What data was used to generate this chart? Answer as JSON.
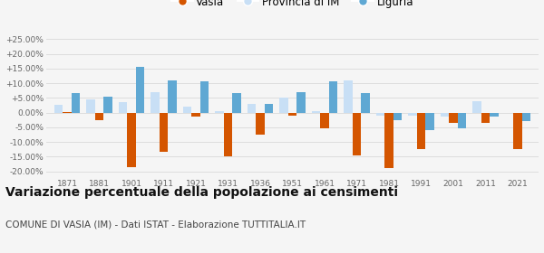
{
  "years": [
    1871,
    1881,
    1901,
    1911,
    1921,
    1931,
    1936,
    1951,
    1961,
    1971,
    1981,
    1991,
    2001,
    2011,
    2021
  ],
  "vasia": [
    0.3,
    -2.5,
    -18.5,
    -13.5,
    -1.5,
    -15.0,
    -7.5,
    -1.0,
    -5.5,
    -14.5,
    -19.0,
    -12.5,
    -3.5,
    -3.5,
    -12.5
  ],
  "provincia_im": [
    2.5,
    4.5,
    3.5,
    7.0,
    2.0,
    0.5,
    3.0,
    5.0,
    0.5,
    11.0,
    -1.0,
    -1.0,
    -1.5,
    4.0,
    0.0
  ],
  "liguria": [
    6.5,
    5.5,
    15.5,
    11.0,
    10.5,
    6.5,
    3.0,
    7.0,
    10.5,
    6.5,
    -2.5,
    -6.0,
    -5.5,
    -1.5,
    -3.0
  ],
  "vasia_color": "#d45500",
  "provincia_color": "#c8dff5",
  "liguria_color": "#5fa8d3",
  "title": "Variazione percentuale della popolazione ai censimenti",
  "subtitle": "COMUNE DI VASIA (IM) - Dati ISTAT - Elaborazione TUTTITALIA.IT",
  "ylim": [
    -22,
    28
  ],
  "yticks": [
    -20,
    -15,
    -10,
    -5,
    0,
    5,
    10,
    15,
    20,
    25
  ],
  "ytick_labels": [
    "-20.00%",
    "-15.00%",
    "-10.00%",
    "-5.00%",
    "0.00%",
    "+5.00%",
    "+10.00%",
    "+15.00%",
    "+20.00%",
    "+25.00%"
  ],
  "background_color": "#f5f5f5",
  "grid_color": "#dddddd",
  "bar_width": 0.27,
  "legend_vasia": "Vasia",
  "legend_provincia": "Provincia di IM",
  "legend_liguria": "Liguria",
  "title_fontsize": 10,
  "subtitle_fontsize": 7.5,
  "tick_fontsize": 6.5
}
